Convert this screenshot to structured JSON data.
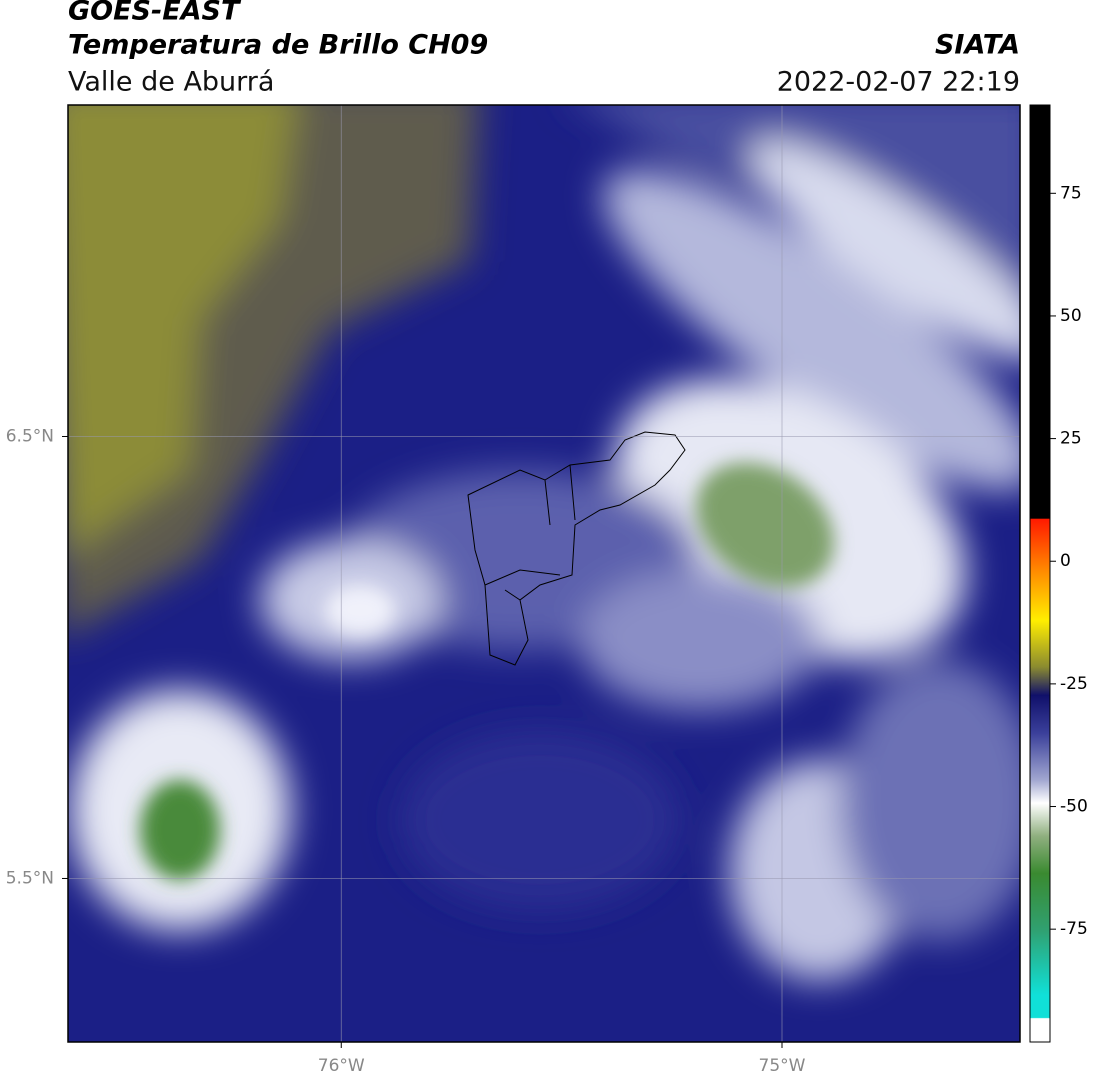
{
  "header": {
    "title": "GOES-EAST",
    "subtitle": "Temperatura de Brillo CH09",
    "region": "Valle de Aburrá",
    "source": "SIATA",
    "datetime": "2022-02-07 22:19"
  },
  "map": {
    "xlim": [
      -76.62,
      -74.46
    ],
    "ylim": [
      5.13,
      7.25
    ],
    "xticks": [
      {
        "value": -76,
        "label": "76°W"
      },
      {
        "value": -75,
        "label": "75°W"
      }
    ],
    "yticks": [
      {
        "value": 6.5,
        "label": "6.5°N"
      },
      {
        "value": 5.5,
        "label": "5.5°N"
      }
    ],
    "grid": true
  },
  "colorbar": {
    "lim": [
      -98,
      93
    ],
    "ticks": [
      75,
      50,
      25,
      0,
      -25,
      -50,
      -75
    ]
  }
}
